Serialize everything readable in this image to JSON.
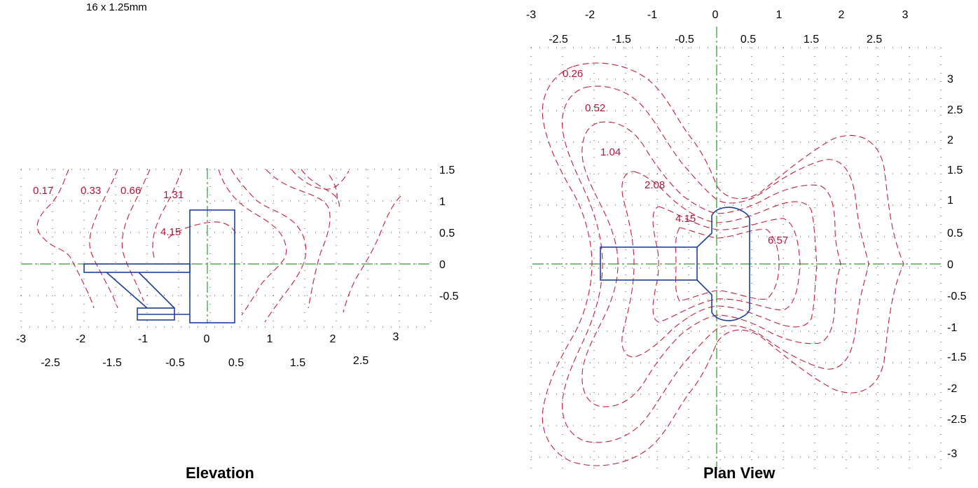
{
  "header": {
    "note": "16 x 1.25mm"
  },
  "colors": {
    "contour": "#c41e3a",
    "fixture": "#1d3f9e",
    "axis": "#2e9a2e",
    "grid": "#444444"
  },
  "elevation": {
    "title": "Elevation",
    "x_ticks_top_row": [
      "-3",
      "-2",
      "-1",
      "0",
      "1",
      "2",
      "3"
    ],
    "x_ticks_bottom_row": [
      "-2.5",
      "-1.5",
      "-0.5",
      "0.5",
      "1.5",
      "2.5"
    ],
    "y_ticks": [
      "1.5",
      "1",
      "0.5",
      "0",
      "-0.5"
    ],
    "contour_labels": [
      "0.17",
      "0.33",
      "0.66",
      "1.31",
      "4.15"
    ]
  },
  "plan": {
    "title": "Plan View",
    "x_ticks_top_row": [
      "-3",
      "-2",
      "-1",
      "0",
      "1",
      "2",
      "3"
    ],
    "x_ticks_bottom_row": [
      "-2.5",
      "-1.5",
      "-0.5",
      "0.5",
      "1.5",
      "2.5"
    ],
    "y_ticks": [
      "3",
      "2.5",
      "2",
      "1.5",
      "1",
      "0.5",
      "0",
      "-0.5",
      "-1",
      "-1.5",
      "-2",
      "-2.5",
      "-3"
    ],
    "contour_labels": [
      "0.26",
      "0.52",
      "1.04",
      "2.08",
      "4.15",
      "6.57"
    ]
  }
}
